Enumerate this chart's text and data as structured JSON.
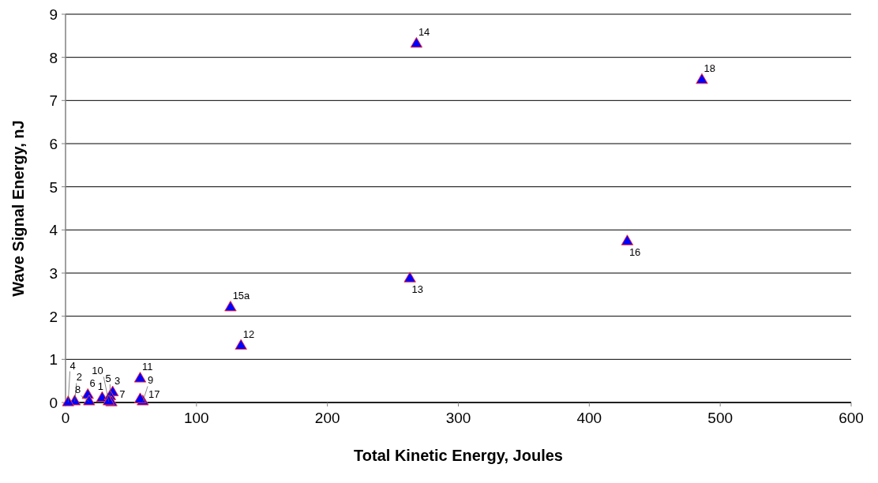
{
  "chart_data": {
    "type": "scatter",
    "xlabel": "Total Kinetic Energy, Joules",
    "ylabel": "Wave Signal Energy, nJ",
    "x": [
      28,
      7,
      36,
      2,
      34,
      17,
      35,
      18,
      59,
      33,
      57,
      134,
      263,
      268,
      126,
      429,
      57,
      486
    ],
    "series": [
      {
        "color": "#0000ff",
        "values": [
          0.1,
          0.02,
          0.23,
          0,
          0.14,
          0.17,
          0,
          0.02,
          0.02,
          0.02,
          0.55,
          1.31,
          2.87,
          8.31,
          2.2,
          3.73,
          0.07,
          7.47
        ]
      }
    ],
    "annotations": [
      {
        "text": "1",
        "x": 28,
        "y": 0.1
      },
      {
        "text": "2",
        "x": 7,
        "y": 0.02
      },
      {
        "text": "3",
        "x": 36,
        "y": 0.23
      },
      {
        "text": "4",
        "x": 2,
        "y": 0
      },
      {
        "text": "5",
        "x": 34,
        "y": 0.14
      },
      {
        "text": "6",
        "x": 17,
        "y": 0.17
      },
      {
        "text": "7",
        "x": 35,
        "y": 0
      },
      {
        "text": "8",
        "x": 18,
        "y": 0.02
      },
      {
        "text": "9",
        "x": 59,
        "y": 0.02
      },
      {
        "text": "10",
        "x": 33,
        "y": 0.02
      },
      {
        "text": "11",
        "x": 57,
        "y": 0.55
      },
      {
        "text": "12",
        "x": 134,
        "y": 1.31
      },
      {
        "text": "13",
        "x": 263,
        "y": 2.87
      },
      {
        "text": "14",
        "x": 268,
        "y": 8.31
      },
      {
        "text": "15a",
        "x": 126,
        "y": 2.2
      },
      {
        "text": "16",
        "x": 429,
        "y": 3.73
      },
      {
        "text": "17",
        "x": 57,
        "y": 0.07
      },
      {
        "text": "18",
        "x": 486,
        "y": 7.47
      }
    ],
    "marker": "triangle",
    "xlim": [
      0,
      600
    ],
    "xticks": [
      0,
      100,
      200,
      300,
      400,
      500,
      600
    ],
    "ylim": [
      0,
      9
    ],
    "yticks": [
      0,
      1,
      2,
      3,
      4,
      5,
      6,
      7,
      8,
      9
    ],
    "grid": "y"
  }
}
